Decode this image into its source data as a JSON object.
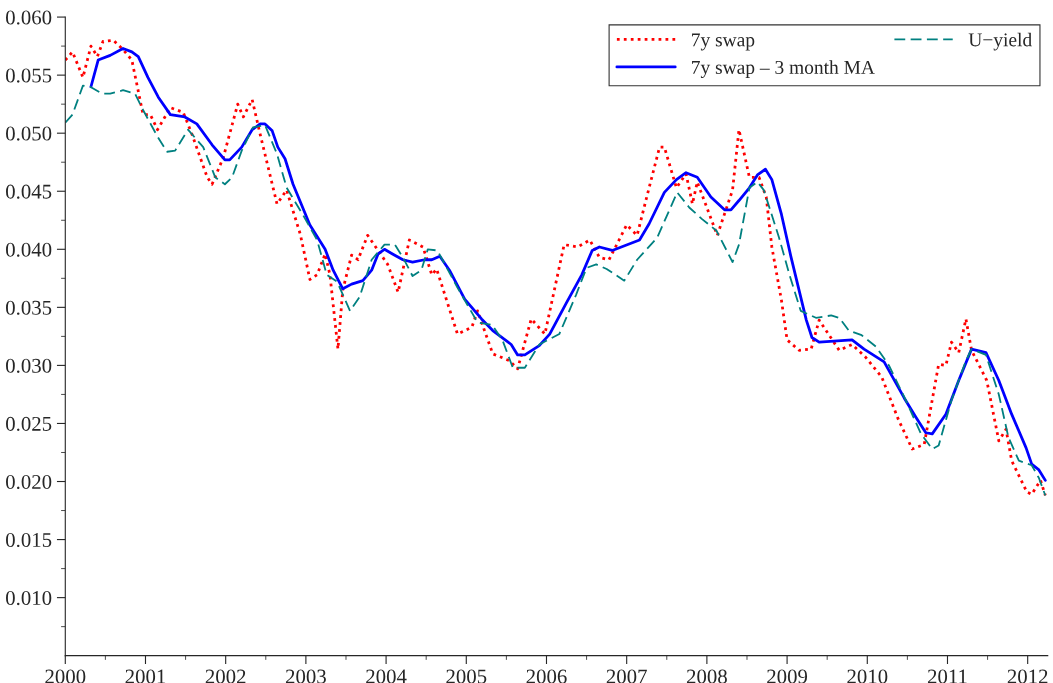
{
  "chart_data": {
    "type": "line",
    "xlim": [
      2000,
      2012.25
    ],
    "ylim": [
      0.005,
      0.06
    ],
    "legend": "top right",
    "xticks": [
      2000,
      {
        "value": 2000.5,
        "label": null
      },
      2001,
      {
        "value": 2001.5,
        "label": null
      },
      2002,
      {
        "value": 2002.5,
        "label": null
      },
      2003,
      {
        "value": 2003.5,
        "label": null
      },
      2004,
      {
        "value": 2004.5,
        "label": null
      },
      2005,
      {
        "value": 2005.5,
        "label": null
      },
      2006,
      {
        "value": 2006.5,
        "label": null
      },
      2007,
      {
        "value": 2007.5,
        "label": null
      },
      2008,
      {
        "value": 2008.5,
        "label": null
      },
      2009,
      {
        "value": 2009.5,
        "label": null
      },
      2010,
      {
        "value": 2010.5,
        "label": null
      },
      2011,
      {
        "value": 2011.5,
        "label": null
      },
      2012
    ],
    "yticks": [
      {
        "value": 0.0075,
        "label": null
      },
      {
        "value": 0.01,
        "label": "0.010"
      },
      {
        "value": 0.0125,
        "label": null
      },
      {
        "value": 0.015,
        "label": "0.015"
      },
      {
        "value": 0.0175,
        "label": null
      },
      {
        "value": 0.02,
        "label": "0.020"
      },
      {
        "value": 0.0225,
        "label": null
      },
      {
        "value": 0.025,
        "label": "0.025"
      },
      {
        "value": 0.0275,
        "label": null
      },
      {
        "value": 0.03,
        "label": "0.030"
      },
      {
        "value": 0.0325,
        "label": null
      },
      {
        "value": 0.035,
        "label": "0.035"
      },
      {
        "value": 0.0375,
        "label": null
      },
      {
        "value": 0.04,
        "label": "0.040"
      },
      {
        "value": 0.0425,
        "label": null
      },
      {
        "value": 0.045,
        "label": "0.045"
      },
      {
        "value": 0.0475,
        "label": null
      },
      {
        "value": 0.05,
        "label": "0.050"
      },
      {
        "value": 0.0525,
        "label": null
      },
      {
        "value": 0.055,
        "label": "0.055"
      },
      {
        "value": 0.0575,
        "label": null
      },
      {
        "value": 0.06,
        "label": "0.060"
      }
    ],
    "series": [
      {
        "name": "7y swap",
        "color": "#ff0000",
        "line_style": "dotted",
        "x": [
          2000.0,
          2000.09,
          2000.22,
          2000.32,
          2000.4,
          2000.47,
          2000.6,
          2000.72,
          2000.83,
          2000.97,
          2001.06,
          2001.15,
          2001.31,
          2001.47,
          2001.58,
          2001.77,
          2001.83,
          2001.97,
          2002.15,
          2002.22,
          2002.33,
          2002.43,
          2002.64,
          2002.76,
          2002.93,
          2003.05,
          2003.14,
          2003.24,
          2003.3,
          2003.4,
          2003.46,
          2003.57,
          2003.65,
          2003.77,
          2004.02,
          2004.15,
          2004.29,
          2004.46,
          2004.57,
          2004.63,
          2004.89,
          2005.07,
          2005.14,
          2005.33,
          2005.54,
          2005.64,
          2005.81,
          2005.98,
          2006.22,
          2006.39,
          2006.54,
          2006.66,
          2006.78,
          2007.0,
          2007.13,
          2007.25,
          2007.41,
          2007.47,
          2007.62,
          2007.74,
          2007.82,
          2007.88,
          2008.13,
          2008.32,
          2008.4,
          2008.53,
          2008.65,
          2008.74,
          2008.81,
          2008.93,
          2009.0,
          2009.15,
          2009.3,
          2009.4,
          2009.65,
          2009.81,
          2009.98,
          2010.18,
          2010.39,
          2010.56,
          2010.71,
          2010.89,
          2010.98,
          2011.05,
          2011.14,
          2011.23,
          2011.3,
          2011.49,
          2011.64,
          2011.73,
          2011.8,
          2011.99,
          2012.05,
          2012.16,
          2012.22
        ],
        "values": [
          0.0563,
          0.057,
          0.0548,
          0.0575,
          0.0566,
          0.0579,
          0.058,
          0.0572,
          0.0563,
          0.0516,
          0.0516,
          0.0503,
          0.0522,
          0.0518,
          0.0499,
          0.0462,
          0.0456,
          0.0479,
          0.0525,
          0.0514,
          0.0529,
          0.0499,
          0.0439,
          0.0451,
          0.0413,
          0.0374,
          0.0378,
          0.0396,
          0.0378,
          0.0314,
          0.0365,
          0.0395,
          0.0391,
          0.0412,
          0.0387,
          0.0363,
          0.0408,
          0.0402,
          0.0378,
          0.0383,
          0.0327,
          0.0333,
          0.0347,
          0.031,
          0.0304,
          0.0297,
          0.034,
          0.0327,
          0.0404,
          0.0402,
          0.0408,
          0.0393,
          0.0391,
          0.0421,
          0.0412,
          0.0445,
          0.0488,
          0.0488,
          0.0453,
          0.0465,
          0.0439,
          0.0458,
          0.0412,
          0.0451,
          0.0503,
          0.0462,
          0.0462,
          0.0445,
          0.0402,
          0.0356,
          0.0322,
          0.0313,
          0.0314,
          0.0339,
          0.0313,
          0.0318,
          0.0307,
          0.029,
          0.0253,
          0.0228,
          0.0232,
          0.0301,
          0.03,
          0.032,
          0.0311,
          0.034,
          0.0313,
          0.0287,
          0.0235,
          0.0245,
          0.0218,
          0.0191,
          0.0189,
          0.0201,
          0.0188
        ]
      },
      {
        "name": "7y swap – 3 month MA",
        "color": "#0000ff",
        "line_style": "solid",
        "x": [
          2000.32,
          2000.41,
          2000.56,
          2000.72,
          2000.83,
          2000.91,
          2001.03,
          2001.16,
          2001.31,
          2001.49,
          2001.64,
          2001.83,
          2001.99,
          2002.05,
          2002.2,
          2002.33,
          2002.43,
          2002.49,
          2002.58,
          2002.65,
          2002.74,
          2002.84,
          2003.05,
          2003.24,
          2003.34,
          2003.46,
          2003.57,
          2003.71,
          2003.82,
          2003.9,
          2003.98,
          2004.08,
          2004.21,
          2004.33,
          2004.48,
          2004.57,
          2004.67,
          2004.79,
          2004.98,
          2005.19,
          2005.33,
          2005.56,
          2005.64,
          2005.73,
          2005.91,
          2006.04,
          2006.25,
          2006.44,
          2006.57,
          2006.66,
          2006.82,
          2007.16,
          2007.28,
          2007.47,
          2007.62,
          2007.74,
          2007.88,
          2008.05,
          2008.22,
          2008.3,
          2008.4,
          2008.53,
          2008.63,
          2008.73,
          2008.81,
          2008.93,
          2009.05,
          2009.24,
          2009.31,
          2009.4,
          2009.81,
          2009.96,
          2010.21,
          2010.46,
          2010.61,
          2010.73,
          2010.81,
          2010.98,
          2011.14,
          2011.3,
          2011.48,
          2011.64,
          2011.8,
          2011.98,
          2012.05,
          2012.14,
          2012.22
        ],
        "values": [
          0.054,
          0.0563,
          0.0567,
          0.0573,
          0.057,
          0.0566,
          0.0548,
          0.0531,
          0.0516,
          0.0514,
          0.0508,
          0.049,
          0.0477,
          0.0477,
          0.0488,
          0.0503,
          0.0508,
          0.0508,
          0.0502,
          0.0488,
          0.0478,
          0.0456,
          0.0421,
          0.04,
          0.0382,
          0.0366,
          0.037,
          0.0373,
          0.0382,
          0.0396,
          0.04,
          0.0396,
          0.0391,
          0.0389,
          0.0391,
          0.0391,
          0.0394,
          0.0382,
          0.0357,
          0.034,
          0.033,
          0.0318,
          0.0309,
          0.0309,
          0.0317,
          0.0327,
          0.0354,
          0.0378,
          0.0399,
          0.0402,
          0.0399,
          0.0408,
          0.0422,
          0.0449,
          0.046,
          0.0466,
          0.0462,
          0.0445,
          0.0434,
          0.0434,
          0.0442,
          0.0453,
          0.0464,
          0.0469,
          0.046,
          0.043,
          0.0393,
          0.0339,
          0.0324,
          0.032,
          0.0322,
          0.0314,
          0.0303,
          0.0272,
          0.0255,
          0.0242,
          0.0241,
          0.0258,
          0.0287,
          0.0314,
          0.0311,
          0.0287,
          0.0258,
          0.0229,
          0.0215,
          0.021,
          0.0201
        ]
      },
      {
        "name": "U−yield",
        "color": "#008080",
        "line_style": "dashed",
        "x": [
          2000.0,
          2000.09,
          2000.22,
          2000.31,
          2000.46,
          2000.56,
          2000.72,
          2000.87,
          2000.97,
          2001.15,
          2001.27,
          2001.37,
          2001.53,
          2001.72,
          2001.87,
          2001.99,
          2002.08,
          2002.2,
          2002.34,
          2002.49,
          2002.64,
          2002.76,
          2002.96,
          2003.14,
          2003.26,
          2003.39,
          2003.55,
          2003.67,
          2003.82,
          2003.98,
          2004.11,
          2004.21,
          2004.33,
          2004.44,
          2004.52,
          2004.64,
          2004.89,
          2005.14,
          2005.32,
          2005.45,
          2005.58,
          2005.73,
          2005.91,
          2006.16,
          2006.37,
          2006.5,
          2006.62,
          2006.75,
          2006.97,
          2007.13,
          2007.38,
          2007.63,
          2007.78,
          2007.94,
          2008.12,
          2008.32,
          2008.4,
          2008.53,
          2008.63,
          2008.71,
          2008.9,
          2009.03,
          2009.17,
          2009.36,
          2009.55,
          2009.65,
          2009.77,
          2009.93,
          2010.11,
          2010.27,
          2010.48,
          2010.67,
          2010.81,
          2010.89,
          2011.05,
          2011.23,
          2011.3,
          2011.48,
          2011.64,
          2011.76,
          2011.89,
          2012.05,
          2012.14,
          2012.22
        ],
        "values": [
          0.0509,
          0.0516,
          0.0541,
          0.054,
          0.0534,
          0.0534,
          0.0537,
          0.0534,
          0.052,
          0.0497,
          0.0484,
          0.0485,
          0.0503,
          0.0488,
          0.0462,
          0.0456,
          0.0462,
          0.0485,
          0.0505,
          0.0507,
          0.0482,
          0.0453,
          0.043,
          0.0408,
          0.0378,
          0.0372,
          0.0347,
          0.0359,
          0.0391,
          0.0404,
          0.0404,
          0.0393,
          0.0377,
          0.0382,
          0.04,
          0.0399,
          0.0367,
          0.0337,
          0.0335,
          0.0322,
          0.0298,
          0.0298,
          0.0318,
          0.0327,
          0.0361,
          0.0384,
          0.0387,
          0.0383,
          0.0373,
          0.0391,
          0.041,
          0.0449,
          0.0436,
          0.0426,
          0.0416,
          0.0389,
          0.0404,
          0.0453,
          0.0458,
          0.0451,
          0.041,
          0.0378,
          0.0347,
          0.0341,
          0.0343,
          0.0341,
          0.033,
          0.0326,
          0.0316,
          0.03,
          0.027,
          0.0241,
          0.0228,
          0.0231,
          0.027,
          0.0304,
          0.0314,
          0.0309,
          0.0275,
          0.0238,
          0.0218,
          0.0214,
          0.0203,
          0.0188
        ]
      }
    ]
  }
}
